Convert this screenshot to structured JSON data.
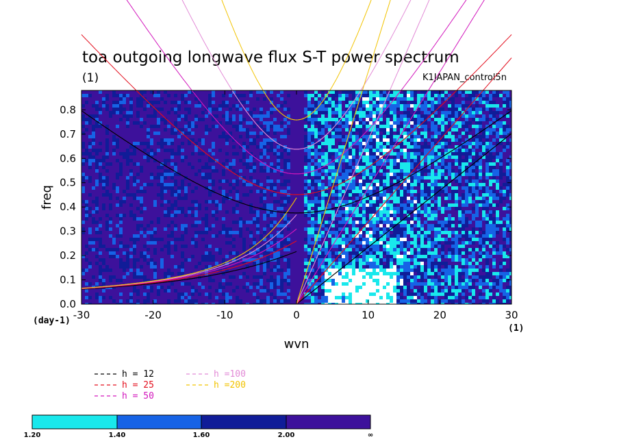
{
  "chart_data": {
    "type": "heatmap",
    "title": "toa outgoing longwave flux S-T power spectrum",
    "subtitle_left": "(1)",
    "subtitle_right": "K1JAPAN_control5n",
    "xlabel": "wvn",
    "ylabel": "freq",
    "x_unit_label": "(1)",
    "y_unit_label": "(day-1)",
    "xlim": [
      -30,
      30
    ],
    "ylim": [
      0,
      0.88
    ],
    "x_ticks": [
      "-30",
      "-20",
      "-10",
      "0",
      "10",
      "20",
      "30"
    ],
    "y_ticks": [
      "0.0",
      "0.1",
      "0.2",
      "0.3",
      "0.4",
      "0.5",
      "0.6",
      "0.7",
      "0.8"
    ],
    "contour_levels": [
      "1.20",
      "1.40",
      "1.60",
      "2.00",
      "∞"
    ],
    "colorbar_colors": [
      "#19e8ec",
      "#1663e6",
      "#101c98",
      "#3d119b"
    ],
    "background_color": "#3d119b",
    "dispersion_curves": [
      {
        "label": "h = 12",
        "h": 12,
        "color": "#000000"
      },
      {
        "label": "h = 25",
        "h": 25,
        "color": "#e30d1c"
      },
      {
        "label": "h = 50",
        "h": 50,
        "color": "#d216bc"
      },
      {
        "label": "h =100",
        "h": 100,
        "color": "#e28ad6"
      },
      {
        "label": "h =200",
        "h": 200,
        "color": "#f2c300"
      }
    ],
    "grid": false,
    "legend_position": "bottom-left"
  }
}
